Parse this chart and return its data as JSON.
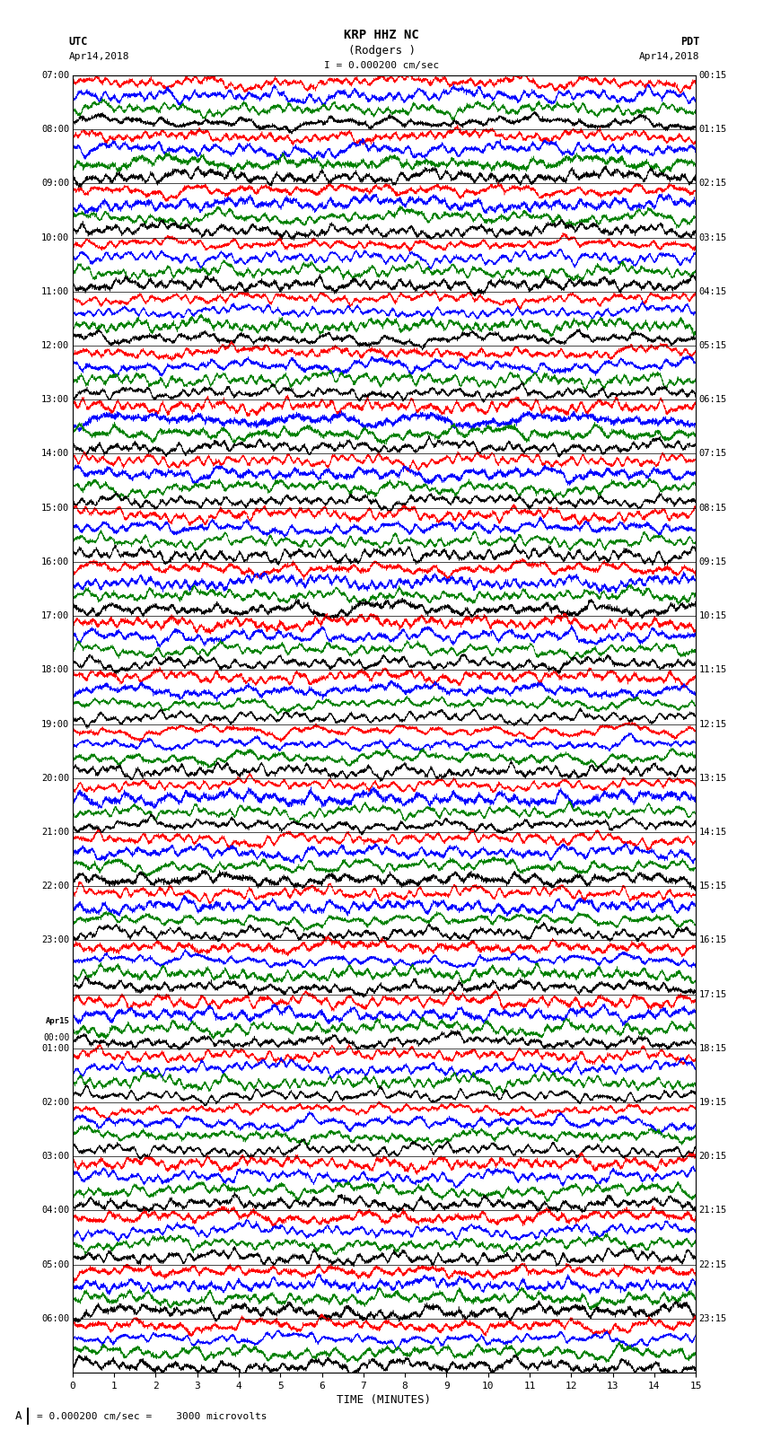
{
  "title_line1": "KRP HHZ NC",
  "title_line2": "(Rodgers )",
  "scale_label": "I = 0.000200 cm/sec",
  "utc_label": "UTC",
  "pdt_label": "PDT",
  "date_left": "Apr14,2018",
  "date_right": "Apr14,2018",
  "xlabel": "TIME (MINUTES)",
  "bottom_note": "= 0.000200 cm/sec =    3000 microvolts",
  "bottom_A": "A",
  "xlim": [
    0,
    15
  ],
  "xticks": [
    0,
    1,
    2,
    3,
    4,
    5,
    6,
    7,
    8,
    9,
    10,
    11,
    12,
    13,
    14,
    15
  ],
  "left_times": [
    "07:00",
    "08:00",
    "09:00",
    "10:00",
    "11:00",
    "12:00",
    "13:00",
    "14:00",
    "15:00",
    "16:00",
    "17:00",
    "18:00",
    "19:00",
    "20:00",
    "21:00",
    "22:00",
    "23:00",
    "Apr15\n00:00",
    "01:00",
    "02:00",
    "03:00",
    "04:00",
    "05:00",
    "06:00"
  ],
  "right_times": [
    "00:15",
    "01:15",
    "02:15",
    "03:15",
    "04:15",
    "05:15",
    "06:15",
    "07:15",
    "08:15",
    "09:15",
    "10:15",
    "11:15",
    "12:15",
    "13:15",
    "14:15",
    "15:15",
    "16:15",
    "17:15",
    "18:15",
    "19:15",
    "20:15",
    "21:15",
    "22:15",
    "23:15"
  ],
  "n_hours": 24,
  "traces_per_hour": 4,
  "colors_cycle": [
    "red",
    "blue",
    "green",
    "black"
  ],
  "fig_width": 8.5,
  "fig_height": 16.13,
  "bg_color": "white",
  "trace_amplitude": 0.85,
  "noise_seed": 42,
  "n_points": 5000
}
